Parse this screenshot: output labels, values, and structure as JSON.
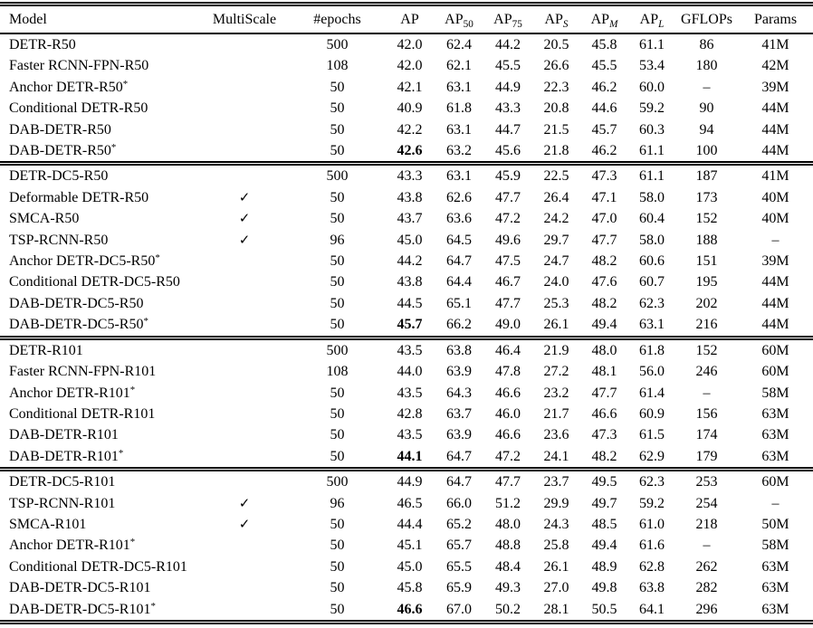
{
  "table": {
    "checkmark": "✓",
    "dash": "–",
    "columns": [
      {
        "label": "Model",
        "sub": ""
      },
      {
        "label": "MultiScale",
        "sub": ""
      },
      {
        "label": "#epochs",
        "sub": ""
      },
      {
        "label": "AP",
        "sub": ""
      },
      {
        "label": "AP",
        "sub": "50"
      },
      {
        "label": "AP",
        "sub": "75"
      },
      {
        "label": "AP",
        "sub": "S"
      },
      {
        "label": "AP",
        "sub": "M"
      },
      {
        "label": "AP",
        "sub": "L"
      },
      {
        "label": "GFLOPs",
        "sub": ""
      },
      {
        "label": "Params",
        "sub": ""
      }
    ],
    "groups": [
      {
        "rows": [
          {
            "model": "DETR-R50",
            "star": false,
            "multiscale": false,
            "epochs": "500",
            "ap": "42.0",
            "bold_ap": false,
            "ap50": "62.4",
            "ap75": "44.2",
            "aps": "20.5",
            "apm": "45.8",
            "apl": "61.1",
            "gflops": "86",
            "params": "41M"
          },
          {
            "model": "Faster RCNN-FPN-R50",
            "star": false,
            "multiscale": false,
            "epochs": "108",
            "ap": "42.0",
            "bold_ap": false,
            "ap50": "62.1",
            "ap75": "45.5",
            "aps": "26.6",
            "apm": "45.5",
            "apl": "53.4",
            "gflops": "180",
            "params": "42M"
          },
          {
            "model": "Anchor DETR-R50",
            "star": true,
            "multiscale": false,
            "epochs": "50",
            "ap": "42.1",
            "bold_ap": false,
            "ap50": "63.1",
            "ap75": "44.9",
            "aps": "22.3",
            "apm": "46.2",
            "apl": "60.0",
            "gflops": "–",
            "params": "39M"
          },
          {
            "model": "Conditional DETR-R50",
            "star": false,
            "multiscale": false,
            "epochs": "50",
            "ap": "40.9",
            "bold_ap": false,
            "ap50": "61.8",
            "ap75": "43.3",
            "aps": "20.8",
            "apm": "44.6",
            "apl": "59.2",
            "gflops": "90",
            "params": "44M"
          },
          {
            "model": "DAB-DETR-R50",
            "star": false,
            "multiscale": false,
            "epochs": "50",
            "ap": "42.2",
            "bold_ap": false,
            "ap50": "63.1",
            "ap75": "44.7",
            "aps": "21.5",
            "apm": "45.7",
            "apl": "60.3",
            "gflops": "94",
            "params": "44M"
          },
          {
            "model": "DAB-DETR-R50",
            "star": true,
            "multiscale": false,
            "epochs": "50",
            "ap": "42.6",
            "bold_ap": true,
            "ap50": "63.2",
            "ap75": "45.6",
            "aps": "21.8",
            "apm": "46.2",
            "apl": "61.1",
            "gflops": "100",
            "params": "44M"
          }
        ]
      },
      {
        "rows": [
          {
            "model": "DETR-DC5-R50",
            "star": false,
            "multiscale": false,
            "epochs": "500",
            "ap": "43.3",
            "bold_ap": false,
            "ap50": "63.1",
            "ap75": "45.9",
            "aps": "22.5",
            "apm": "47.3",
            "apl": "61.1",
            "gflops": "187",
            "params": "41M"
          },
          {
            "model": "Deformable DETR-R50",
            "star": false,
            "multiscale": true,
            "epochs": "50",
            "ap": "43.8",
            "bold_ap": false,
            "ap50": "62.6",
            "ap75": "47.7",
            "aps": "26.4",
            "apm": "47.1",
            "apl": "58.0",
            "gflops": "173",
            "params": "40M"
          },
          {
            "model": "SMCA-R50",
            "star": false,
            "multiscale": true,
            "epochs": "50",
            "ap": "43.7",
            "bold_ap": false,
            "ap50": "63.6",
            "ap75": "47.2",
            "aps": "24.2",
            "apm": "47.0",
            "apl": "60.4",
            "gflops": "152",
            "params": "40M"
          },
          {
            "model": "TSP-RCNN-R50",
            "star": false,
            "multiscale": true,
            "epochs": "96",
            "ap": "45.0",
            "bold_ap": false,
            "ap50": "64.5",
            "ap75": "49.6",
            "aps": "29.7",
            "apm": "47.7",
            "apl": "58.0",
            "gflops": "188",
            "params": "–"
          },
          {
            "model": "Anchor DETR-DC5-R50",
            "star": true,
            "multiscale": false,
            "epochs": "50",
            "ap": "44.2",
            "bold_ap": false,
            "ap50": "64.7",
            "ap75": "47.5",
            "aps": "24.7",
            "apm": "48.2",
            "apl": "60.6",
            "gflops": "151",
            "params": "39M"
          },
          {
            "model": "Conditional DETR-DC5-R50",
            "star": false,
            "multiscale": false,
            "epochs": "50",
            "ap": "43.8",
            "bold_ap": false,
            "ap50": "64.4",
            "ap75": "46.7",
            "aps": "24.0",
            "apm": "47.6",
            "apl": "60.7",
            "gflops": "195",
            "params": "44M"
          },
          {
            "model": "DAB-DETR-DC5-R50",
            "star": false,
            "multiscale": false,
            "epochs": "50",
            "ap": "44.5",
            "bold_ap": false,
            "ap50": "65.1",
            "ap75": "47.7",
            "aps": "25.3",
            "apm": "48.2",
            "apl": "62.3",
            "gflops": "202",
            "params": "44M"
          },
          {
            "model": "DAB-DETR-DC5-R50",
            "star": true,
            "multiscale": false,
            "epochs": "50",
            "ap": "45.7",
            "bold_ap": true,
            "ap50": "66.2",
            "ap75": "49.0",
            "aps": "26.1",
            "apm": "49.4",
            "apl": "63.1",
            "gflops": "216",
            "params": "44M"
          }
        ]
      },
      {
        "rows": [
          {
            "model": "DETR-R101",
            "star": false,
            "multiscale": false,
            "epochs": "500",
            "ap": "43.5",
            "bold_ap": false,
            "ap50": "63.8",
            "ap75": "46.4",
            "aps": "21.9",
            "apm": "48.0",
            "apl": "61.8",
            "gflops": "152",
            "params": "60M"
          },
          {
            "model": "Faster RCNN-FPN-R101",
            "star": false,
            "multiscale": false,
            "epochs": "108",
            "ap": "44.0",
            "bold_ap": false,
            "ap50": "63.9",
            "ap75": "47.8",
            "aps": "27.2",
            "apm": "48.1",
            "apl": "56.0",
            "gflops": "246",
            "params": "60M"
          },
          {
            "model": "Anchor DETR-R101",
            "star": true,
            "multiscale": false,
            "epochs": "50",
            "ap": "43.5",
            "bold_ap": false,
            "ap50": "64.3",
            "ap75": "46.6",
            "aps": "23.2",
            "apm": "47.7",
            "apl": "61.4",
            "gflops": "–",
            "params": "58M"
          },
          {
            "model": "Conditional DETR-R101",
            "star": false,
            "multiscale": false,
            "epochs": "50",
            "ap": "42.8",
            "bold_ap": false,
            "ap50": "63.7",
            "ap75": "46.0",
            "aps": "21.7",
            "apm": "46.6",
            "apl": "60.9",
            "gflops": "156",
            "params": "63M"
          },
          {
            "model": "DAB-DETR-R101",
            "star": false,
            "multiscale": false,
            "epochs": "50",
            "ap": "43.5",
            "bold_ap": false,
            "ap50": "63.9",
            "ap75": "46.6",
            "aps": "23.6",
            "apm": "47.3",
            "apl": "61.5",
            "gflops": "174",
            "params": "63M"
          },
          {
            "model": "DAB-DETR-R101",
            "star": true,
            "multiscale": false,
            "epochs": "50",
            "ap": "44.1",
            "bold_ap": true,
            "ap50": "64.7",
            "ap75": "47.2",
            "aps": "24.1",
            "apm": "48.2",
            "apl": "62.9",
            "gflops": "179",
            "params": "63M"
          }
        ]
      },
      {
        "rows": [
          {
            "model": "DETR-DC5-R101",
            "star": false,
            "multiscale": false,
            "epochs": "500",
            "ap": "44.9",
            "bold_ap": false,
            "ap50": "64.7",
            "ap75": "47.7",
            "aps": "23.7",
            "apm": "49.5",
            "apl": "62.3",
            "gflops": "253",
            "params": "60M"
          },
          {
            "model": "TSP-RCNN-R101",
            "star": false,
            "multiscale": true,
            "epochs": "96",
            "ap": "46.5",
            "bold_ap": false,
            "ap50": "66.0",
            "ap75": "51.2",
            "aps": "29.9",
            "apm": "49.7",
            "apl": "59.2",
            "gflops": "254",
            "params": "–"
          },
          {
            "model": "SMCA-R101",
            "star": false,
            "multiscale": true,
            "epochs": "50",
            "ap": "44.4",
            "bold_ap": false,
            "ap50": "65.2",
            "ap75": "48.0",
            "aps": "24.3",
            "apm": "48.5",
            "apl": "61.0",
            "gflops": "218",
            "params": "50M"
          },
          {
            "model": "Anchor DETR-R101",
            "star": true,
            "multiscale": false,
            "epochs": "50",
            "ap": "45.1",
            "bold_ap": false,
            "ap50": "65.7",
            "ap75": "48.8",
            "aps": "25.8",
            "apm": "49.4",
            "apl": "61.6",
            "gflops": "–",
            "params": "58M"
          },
          {
            "model": "Conditional DETR-DC5-R101",
            "star": false,
            "multiscale": false,
            "epochs": "50",
            "ap": "45.0",
            "bold_ap": false,
            "ap50": "65.5",
            "ap75": "48.4",
            "aps": "26.1",
            "apm": "48.9",
            "apl": "62.8",
            "gflops": "262",
            "params": "63M"
          },
          {
            "model": "DAB-DETR-DC5-R101",
            "star": false,
            "multiscale": false,
            "epochs": "50",
            "ap": "45.8",
            "bold_ap": false,
            "ap50": "65.9",
            "ap75": "49.3",
            "aps": "27.0",
            "apm": "49.8",
            "apl": "63.8",
            "gflops": "282",
            "params": "63M"
          },
          {
            "model": "DAB-DETR-DC5-R101",
            "star": true,
            "multiscale": false,
            "epochs": "50",
            "ap": "46.6",
            "bold_ap": true,
            "ap50": "67.0",
            "ap75": "50.2",
            "aps": "28.1",
            "apm": "50.5",
            "apl": "64.1",
            "gflops": "296",
            "params": "63M"
          }
        ]
      }
    ]
  }
}
